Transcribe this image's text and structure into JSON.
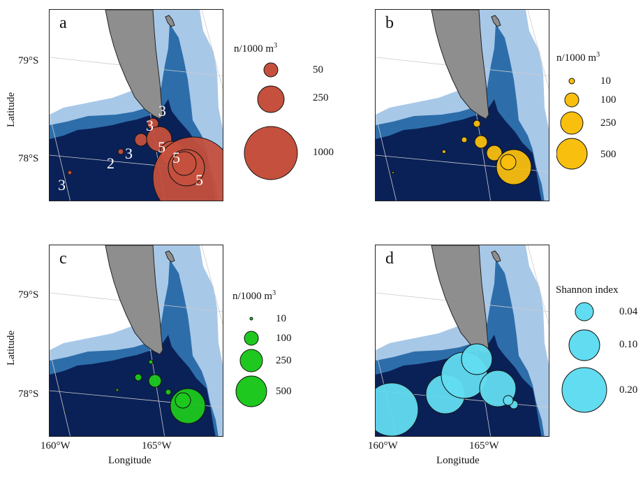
{
  "colors": {
    "deep": "#0a2157",
    "mid": "#2d6eaa",
    "light": "#a8c8e8",
    "land": "#8e8e8e",
    "red": "#c4503d",
    "yellow": "#f8bf0f",
    "green": "#1ec81e",
    "cyan": "#62dcf0"
  },
  "axes": {
    "lat_labels": [
      "79°S",
      "78°S"
    ],
    "lon_labels": [
      "160°W",
      "165°W"
    ],
    "xlabel": "Longitude",
    "ylabel": "Latitude"
  },
  "panels": [
    {
      "label": "a",
      "legend_title": "n/1000 m",
      "legend_sup": "3",
      "legend_values": [
        "50",
        "250",
        "1000"
      ],
      "color_key": "red",
      "station_labels": [
        "3",
        "3",
        "3",
        "2",
        "3",
        "5",
        "5",
        "5",
        "3"
      ]
    },
    {
      "label": "b",
      "legend_title": "n/1000 m",
      "legend_sup": "3",
      "legend_values": [
        "10",
        "100",
        "250",
        "500"
      ],
      "color_key": "yellow"
    },
    {
      "label": "c",
      "legend_title": "n/1000 m",
      "legend_sup": "3",
      "legend_values": [
        "10",
        "100",
        "250",
        "500"
      ],
      "color_key": "green"
    },
    {
      "label": "d",
      "legend_title": "Shannon index",
      "legend_sup": "",
      "legend_values": [
        "0.04",
        "0.10",
        "0.20"
      ],
      "color_key": "cyan"
    }
  ]
}
